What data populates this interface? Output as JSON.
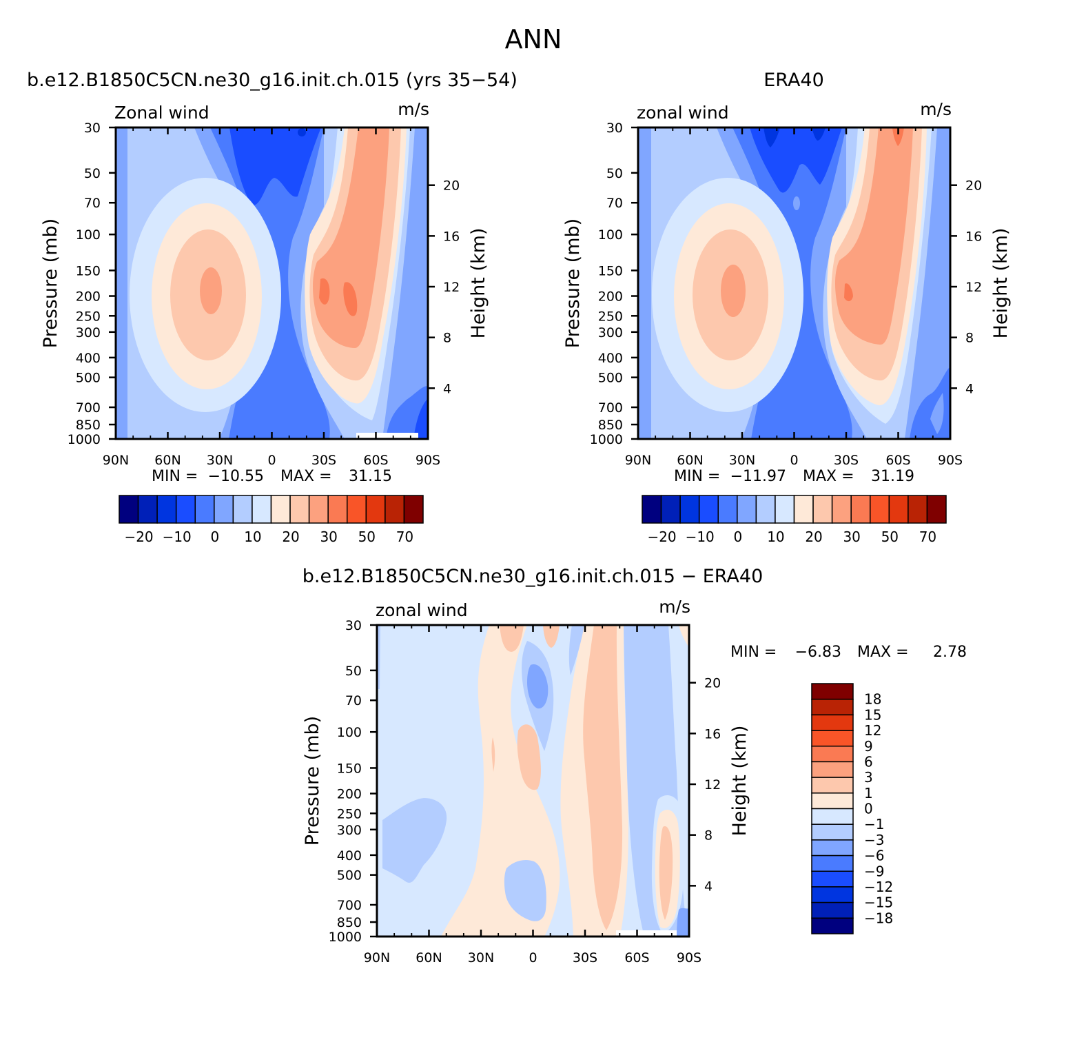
{
  "figure": {
    "title": "ANN"
  },
  "chart_data": [
    {
      "type": "heatmap",
      "id": "model",
      "title": "b.e12.B1850C5CN.ne30_g16.init.ch.015 (yrs 35-54)",
      "left_label": "Zonal wind",
      "units": "m/s",
      "ylabel": "Pressure (mb)",
      "ylabel_right": "Height (km)",
      "x_ticks": [
        "90N",
        "60N",
        "30N",
        "0",
        "30S",
        "60S",
        "90S"
      ],
      "y_ticks": [
        "30",
        "50",
        "70",
        "100",
        "150",
        "200",
        "250",
        "300",
        "400",
        "500",
        "700",
        "850",
        "1000"
      ],
      "height_ticks": [
        "20",
        "16",
        "12",
        "8",
        "4"
      ],
      "stats": {
        "min_label": "MIN =",
        "min": "-10.55",
        "max_label": "MAX =",
        "max": "31.15"
      },
      "colorbar": {
        "orientation": "horizontal",
        "labels": [
          "-20",
          "-10",
          "0",
          "10",
          "20",
          "30",
          "50",
          "70"
        ],
        "colors": [
          "#00007f",
          "#0020b8",
          "#0035e0",
          "#1a4dff",
          "#4a7bff",
          "#80a6ff",
          "#b3cdff",
          "#d7e8ff",
          "#fee9d8",
          "#fdc8ad",
          "#fca17f",
          "#fa7a53",
          "#f95528",
          "#e3380f",
          "#b92305",
          "#7f0000"
        ]
      }
    },
    {
      "type": "heatmap",
      "id": "obs",
      "title": "ERA40",
      "left_label": "zonal wind",
      "units": "m/s",
      "ylabel": "Pressure (mb)",
      "ylabel_right": "Height (km)",
      "x_ticks": [
        "90N",
        "60N",
        "30N",
        "0",
        "30S",
        "60S",
        "90S"
      ],
      "y_ticks": [
        "30",
        "50",
        "70",
        "100",
        "150",
        "200",
        "250",
        "300",
        "400",
        "500",
        "700",
        "850",
        "1000"
      ],
      "height_ticks": [
        "20",
        "16",
        "12",
        "8",
        "4"
      ],
      "stats": {
        "min_label": "MIN =",
        "min": "-11.97",
        "max_label": "MAX =",
        "max": "31.19"
      },
      "colorbar": {
        "orientation": "horizontal",
        "labels": [
          "-20",
          "-10",
          "0",
          "10",
          "20",
          "30",
          "50",
          "70"
        ],
        "colors": [
          "#00007f",
          "#0020b8",
          "#0035e0",
          "#1a4dff",
          "#4a7bff",
          "#80a6ff",
          "#b3cdff",
          "#d7e8ff",
          "#fee9d8",
          "#fdc8ad",
          "#fca17f",
          "#fa7a53",
          "#f95528",
          "#e3380f",
          "#b92305",
          "#7f0000"
        ]
      }
    },
    {
      "type": "heatmap",
      "id": "diff",
      "title": "b.e12.B1850C5CN.ne30_g16.init.ch.015 - ERA40",
      "left_label": "zonal wind",
      "units": "m/s",
      "ylabel": "Pressure (mb)",
      "ylabel_right": "Height (km)",
      "x_ticks": [
        "90N",
        "60N",
        "30N",
        "0",
        "30S",
        "60S",
        "90S"
      ],
      "y_ticks": [
        "30",
        "50",
        "70",
        "100",
        "150",
        "200",
        "250",
        "300",
        "400",
        "500",
        "700",
        "850",
        "1000"
      ],
      "height_ticks": [
        "20",
        "16",
        "12",
        "8",
        "4"
      ],
      "stats": {
        "min_label": "MIN =",
        "min": "-6.83",
        "max_label": "MAX =",
        "max": "2.78"
      },
      "colorbar": {
        "orientation": "vertical",
        "labels": [
          "18",
          "15",
          "12",
          "9",
          "6",
          "3",
          "1",
          "0",
          "-1",
          "-3",
          "-6",
          "-9",
          "-12",
          "-15",
          "-18"
        ],
        "colors": [
          "#7f0000",
          "#b92305",
          "#e3380f",
          "#f95528",
          "#fa7a53",
          "#fca17f",
          "#fdc8ad",
          "#fee9d8",
          "#d7e8ff",
          "#b3cdff",
          "#80a6ff",
          "#4a7bff",
          "#1a4dff",
          "#0035e0",
          "#0020b8",
          "#00007f"
        ]
      }
    }
  ]
}
